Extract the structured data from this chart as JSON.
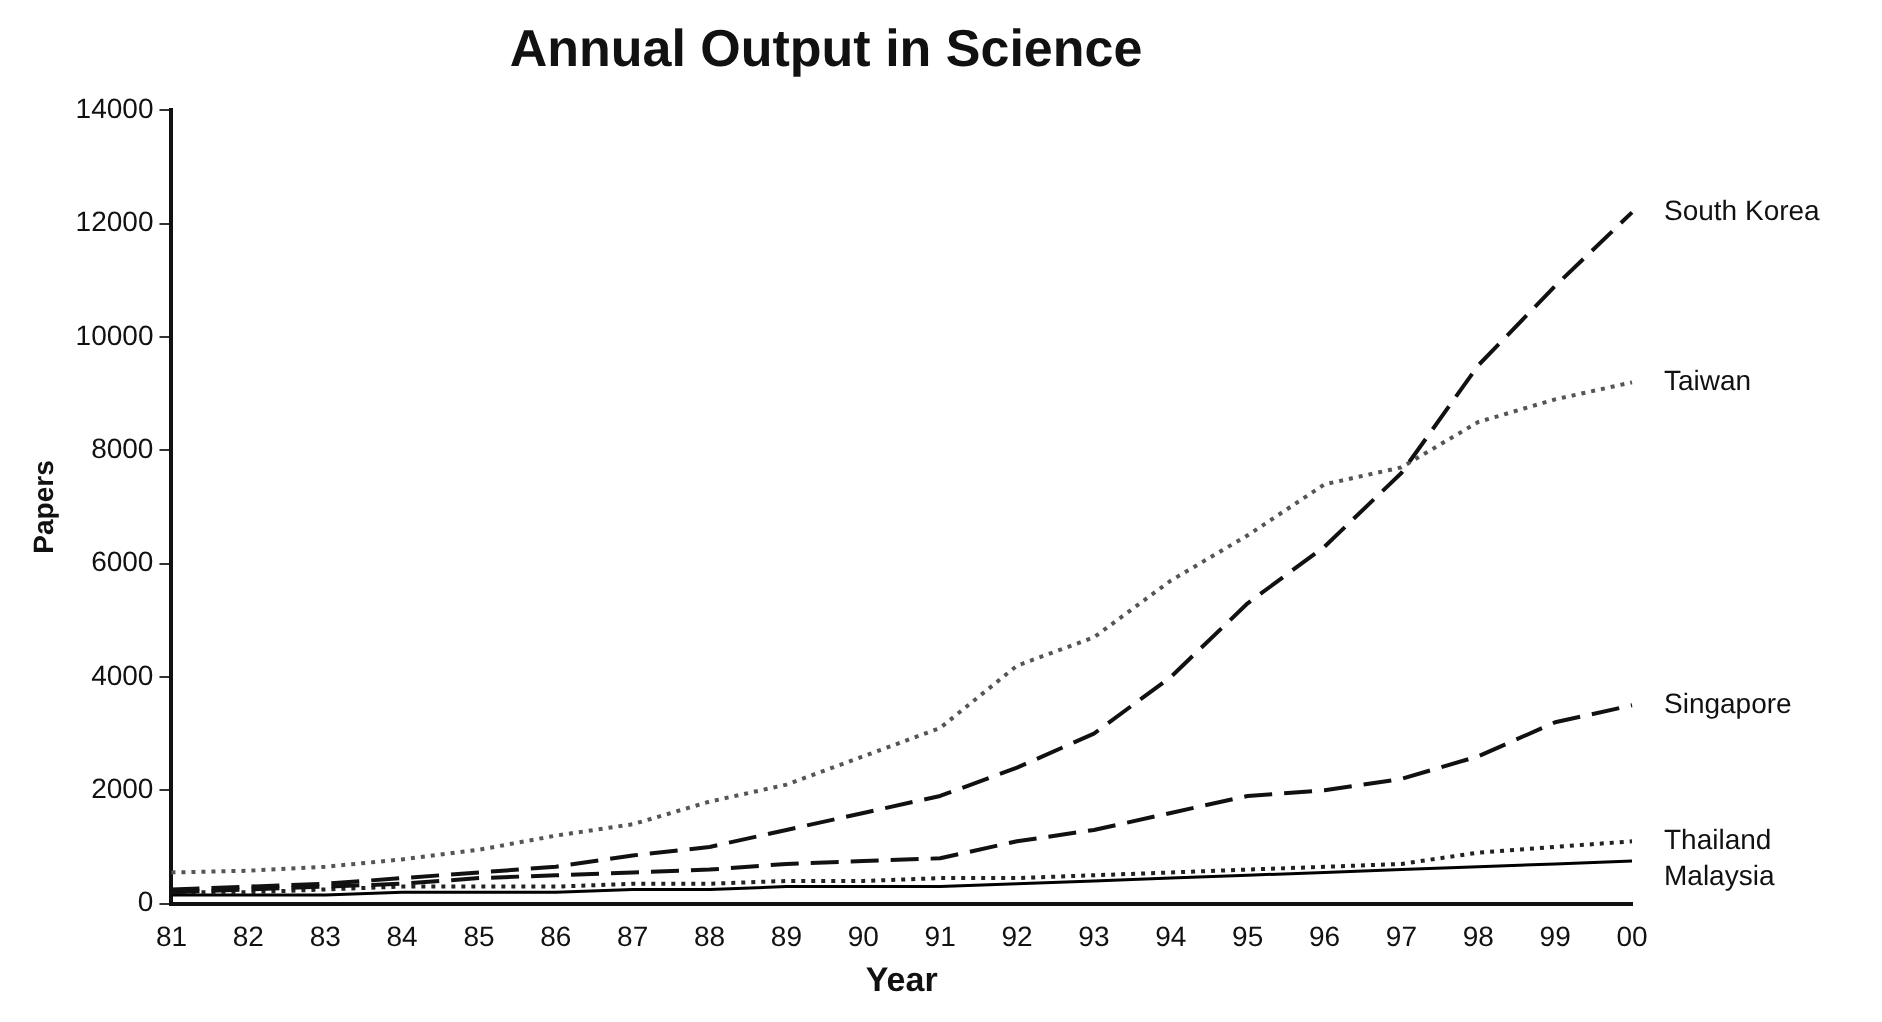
{
  "chart_data": {
    "type": "line",
    "title": "Annual Output in Science",
    "xlabel": "Year",
    "ylabel": "Papers",
    "categories": [
      "81",
      "82",
      "83",
      "84",
      "85",
      "86",
      "87",
      "88",
      "89",
      "90",
      "91",
      "92",
      "93",
      "94",
      "95",
      "96",
      "97",
      "98",
      "99",
      "00"
    ],
    "ylim": [
      0,
      14000
    ],
    "yticks": [
      0,
      2000,
      4000,
      6000,
      8000,
      10000,
      12000,
      14000
    ],
    "grid": false,
    "legend": false,
    "marker": "none",
    "series": [
      {
        "name": "South Korea",
        "color": "#111111",
        "line_style": "dashed",
        "values": [
          250,
          300,
          350,
          450,
          550,
          650,
          850,
          1000,
          1300,
          1600,
          1900,
          2400,
          3000,
          4000,
          5300,
          6300,
          7600,
          9500,
          10900,
          12200
        ]
      },
      {
        "name": "Taiwan",
        "color": "#555555",
        "line_style": "dotted",
        "values": [
          550,
          580,
          650,
          780,
          950,
          1200,
          1400,
          1800,
          2100,
          2600,
          3100,
          4200,
          4700,
          5700,
          6500,
          7400,
          7700,
          8500,
          8900,
          9200
        ]
      },
      {
        "name": "Singapore",
        "color": "#111111",
        "line_style": "dashed",
        "values": [
          200,
          250,
          300,
          350,
          450,
          500,
          550,
          600,
          700,
          750,
          800,
          1100,
          1300,
          1600,
          1900,
          2000,
          2200,
          2600,
          3200,
          3500
        ]
      },
      {
        "name": "Thailand",
        "color": "#222222",
        "line_style": "dotted",
        "values": [
          200,
          200,
          250,
          300,
          300,
          300,
          350,
          350,
          400,
          400,
          450,
          450,
          500,
          550,
          600,
          650,
          700,
          900,
          1000,
          1100
        ]
      },
      {
        "name": "Malaysia",
        "color": "#000000",
        "line_style": "solid",
        "values": [
          150,
          150,
          150,
          200,
          200,
          200,
          250,
          250,
          300,
          300,
          300,
          350,
          400,
          450,
          500,
          550,
          600,
          650,
          700,
          750
        ]
      }
    ]
  }
}
